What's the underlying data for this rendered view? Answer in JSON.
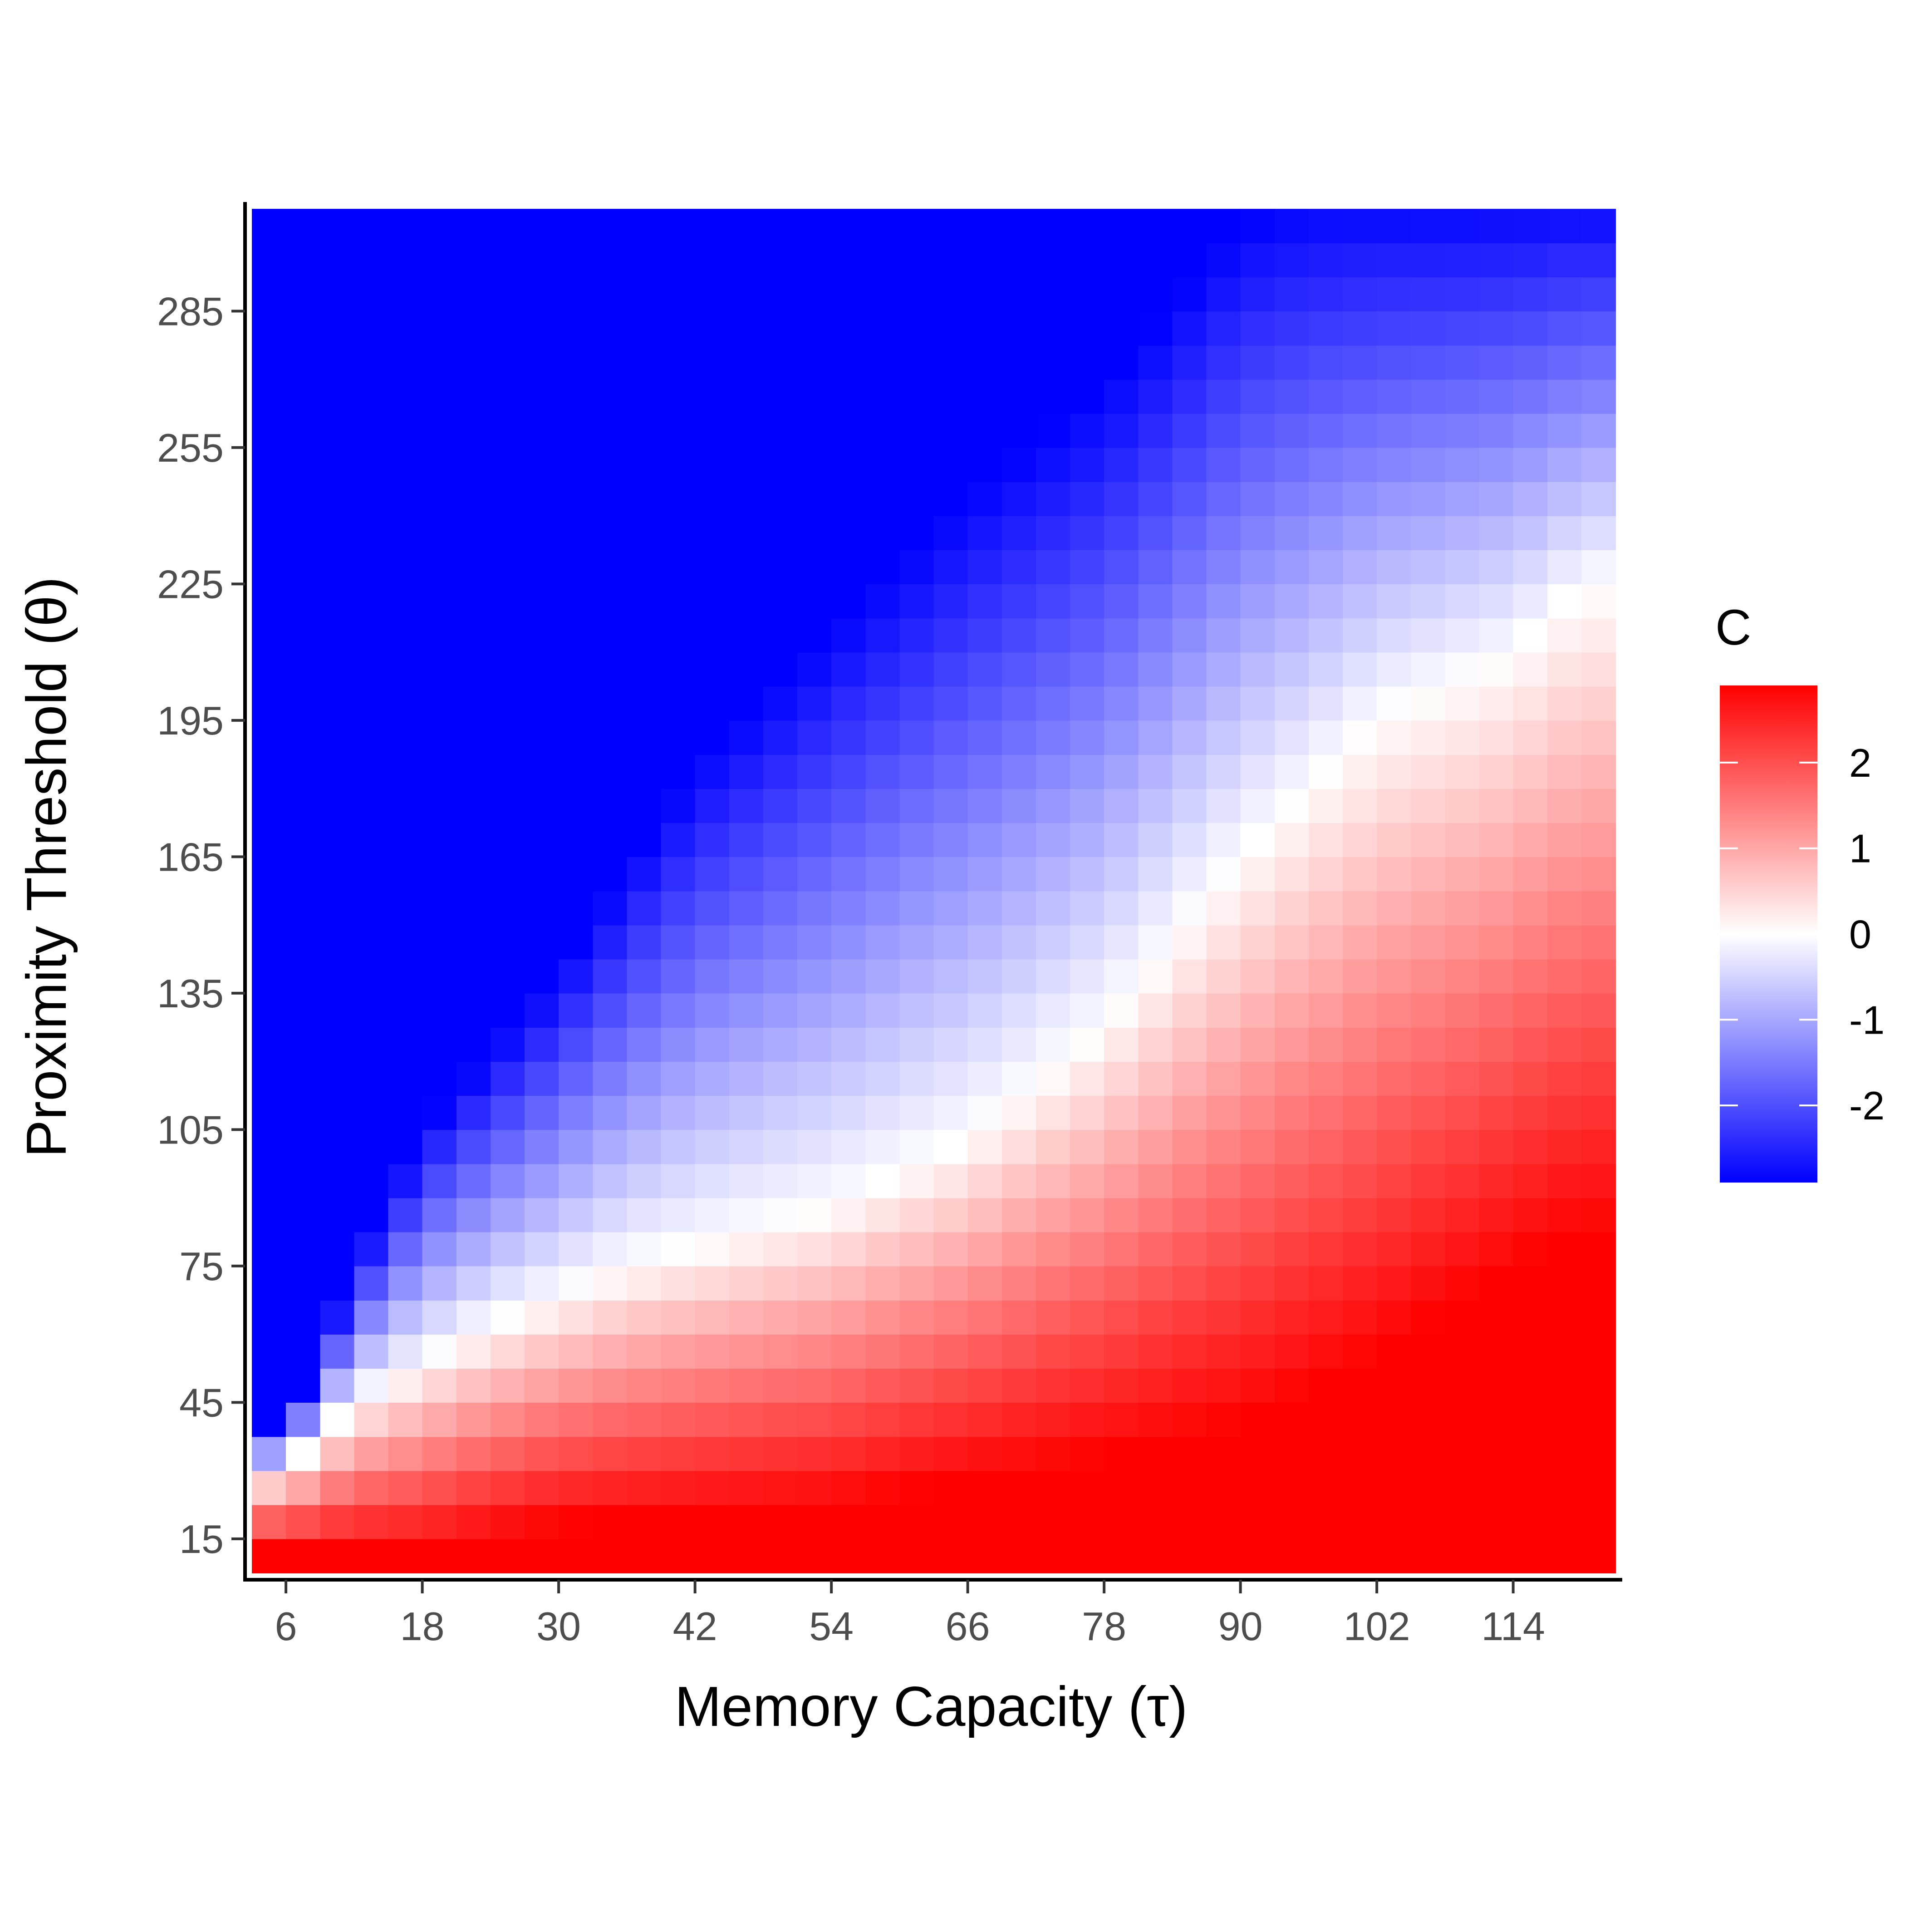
{
  "chart_data": {
    "type": "heatmap",
    "title": "",
    "xlabel": "Memory Capacity (τ)",
    "ylabel": "Proximity Threshold (θ)",
    "x_ticks": [
      6,
      18,
      30,
      42,
      54,
      66,
      78,
      90,
      102,
      114
    ],
    "y_ticks": [
      15,
      45,
      75,
      105,
      135,
      165,
      195,
      225,
      255,
      285
    ],
    "xlim": [
      3,
      123
    ],
    "ylim": [
      7.5,
      307.5
    ],
    "grid": false,
    "legend": {
      "title": "C",
      "position": "right",
      "range": [
        -2.9,
        2.9
      ],
      "breaks": [
        -2,
        -1,
        0,
        1,
        2
      ],
      "break_labels": [
        "-2",
        "-1",
        "0",
        "1",
        "2"
      ],
      "colors": {
        "low": "#0000ff",
        "mid": "#ffffff",
        "high": "#ff0000"
      }
    },
    "boundary_c_zero": [
      {
        "tau": 6,
        "theta": 30
      },
      {
        "tau": 12,
        "theta": 45
      },
      {
        "tau": 24,
        "theta": 62
      },
      {
        "tau": 36,
        "theta": 75
      },
      {
        "tau": 54,
        "theta": 88
      },
      {
        "tau": 66,
        "theta": 103
      },
      {
        "tau": 78,
        "theta": 128
      },
      {
        "tau": 90,
        "theta": 165
      },
      {
        "tau": 102,
        "theta": 196
      },
      {
        "tau": 114,
        "theta": 210
      },
      {
        "tau": 120,
        "theta": 225
      }
    ],
    "saturated_blue_edge": [
      {
        "tau": 6,
        "theta": 40
      },
      {
        "tau": 12,
        "theta": 75
      },
      {
        "tau": 18,
        "theta": 105
      },
      {
        "tau": 30,
        "theta": 140
      },
      {
        "tau": 42,
        "theta": 185
      },
      {
        "tau": 54,
        "theta": 215
      },
      {
        "tau": 66,
        "theta": 245
      },
      {
        "tau": 78,
        "theta": 268
      },
      {
        "tau": 90,
        "theta": 305
      },
      {
        "tau": 96,
        "theta": 310
      }
    ],
    "saturated_red_edge": [
      {
        "tau": 18,
        "theta": 12
      },
      {
        "tau": 30,
        "theta": 18
      },
      {
        "tau": 54,
        "theta": 22
      },
      {
        "tau": 66,
        "theta": 28
      },
      {
        "tau": 78,
        "theta": 33
      },
      {
        "tau": 90,
        "theta": 40
      },
      {
        "tau": 102,
        "theta": 55
      },
      {
        "tau": 114,
        "theta": 75
      },
      {
        "tau": 120,
        "theta": 82
      }
    ]
  }
}
